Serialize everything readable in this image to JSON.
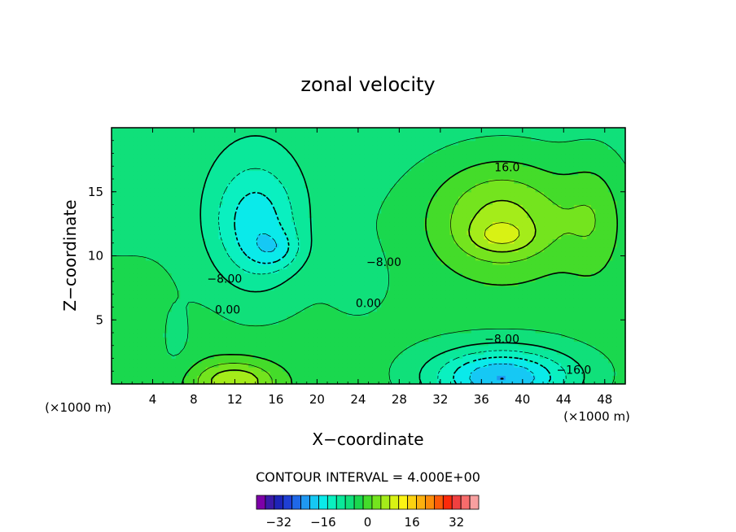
{
  "chart_data": {
    "type": "heatmap",
    "title": "zonal velocity",
    "xlabel": "X−coordinate",
    "ylabel": "Z−coordinate",
    "x_unit_left": "(×1000 m)",
    "x_unit_right": "(×1000 m)",
    "xlim": [
      0,
      50
    ],
    "ylim": [
      0,
      20
    ],
    "x_ticks": [
      4,
      8,
      12,
      16,
      20,
      24,
      28,
      32,
      36,
      40,
      44,
      48
    ],
    "y_ticks": [
      5,
      10,
      15
    ],
    "contour_interval_text": "CONTOUR INTERVAL = 4.000E+00",
    "contour_labels": [
      {
        "text": "16.0",
        "x": 38.5,
        "y": 16.6
      },
      {
        "text": "−8.00",
        "x": 11.0,
        "y": 7.9
      },
      {
        "text": "0.00",
        "x": 11.3,
        "y": 5.5
      },
      {
        "text": "−8.00",
        "x": 26.5,
        "y": 9.2
      },
      {
        "text": "0.00",
        "x": 25.0,
        "y": 6.0
      },
      {
        "text": "−8.00",
        "x": 38.0,
        "y": 3.2
      },
      {
        "text": "−16.0",
        "x": 45.0,
        "y": 0.8
      }
    ],
    "colorbar": {
      "min": -40,
      "max": 40,
      "step": 4,
      "tick_values": [
        -32,
        -16,
        0,
        16,
        32
      ],
      "tick_labels": [
        "−32",
        "−16",
        "0",
        "16",
        "32"
      ],
      "colors": [
        "#7d00a8",
        "#3a1aa8",
        "#1d24b8",
        "#1f3fd4",
        "#1f68e8",
        "#1f98f2",
        "#16c8f4",
        "#0aeaea",
        "#0af0c0",
        "#0ae89a",
        "#10e07a",
        "#1ad84e",
        "#44dc2a",
        "#74e41e",
        "#a4ec1a",
        "#d8f214",
        "#fcf414",
        "#fcd210",
        "#fcb00e",
        "#fc8c0a",
        "#fc5a08",
        "#fc2a0a",
        "#f04040",
        "#f86c6c",
        "#f8a0a0"
      ]
    }
  }
}
